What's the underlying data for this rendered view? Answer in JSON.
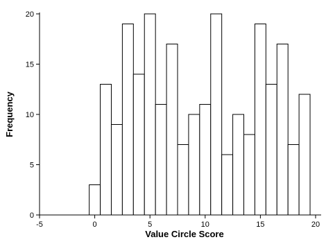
{
  "chart_data": {
    "type": "bar",
    "title": "",
    "xlabel": "Value Circle Score",
    "ylabel": "Frequency",
    "xlim": [
      -5,
      20
    ],
    "ylim": [
      0,
      20
    ],
    "xticks": [
      -5,
      0,
      5,
      10,
      15,
      20
    ],
    "yticks": [
      0,
      5,
      10,
      15,
      20
    ],
    "bin_width": 1,
    "x": [
      0,
      1,
      2,
      3,
      4,
      5,
      6,
      7,
      8,
      9,
      10,
      11,
      12,
      13,
      14,
      15,
      16,
      17,
      18,
      19
    ],
    "values": [
      3,
      13,
      9,
      19,
      14,
      20,
      11,
      17,
      7,
      10,
      11,
      20,
      6,
      10,
      8,
      19,
      13,
      17,
      7,
      12
    ],
    "bar_fill": "#ffffff",
    "bar_stroke": "#000000",
    "grid": false
  }
}
